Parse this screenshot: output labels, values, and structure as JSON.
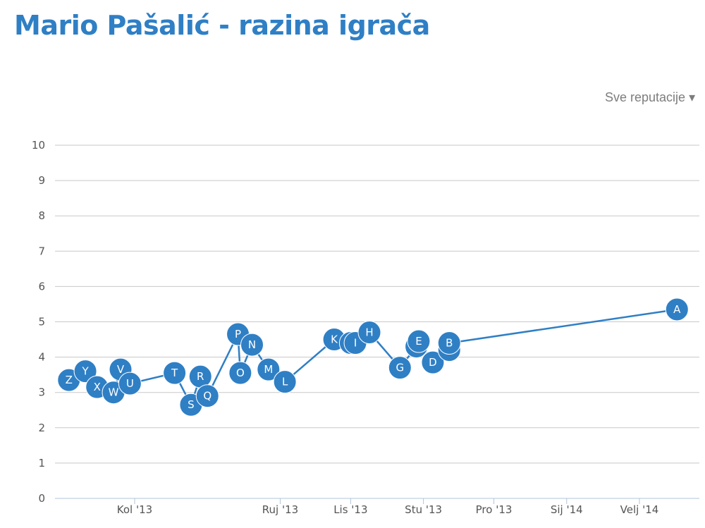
{
  "title": "Mario Pašalić - razina igrača",
  "filter": {
    "label": "Sve reputacije"
  },
  "colors": {
    "series": "#2f7fc5",
    "grid": "#c8c8c8",
    "axis": "#b0c4de"
  },
  "chart_data": {
    "type": "line",
    "title": "",
    "xlabel": "",
    "ylabel": "",
    "ylim": [
      0,
      10
    ],
    "yticks": [
      "0",
      "1",
      "2",
      "3",
      "4",
      "5",
      "6",
      "7",
      "8",
      "9",
      "10"
    ],
    "grid": true,
    "xticks": [
      {
        "label": "Kol '13",
        "date": "2013-07-01"
      },
      {
        "label": "Ruj '13",
        "date": "2013-09-01"
      },
      {
        "label": "Lis '13",
        "date": "2013-10-01"
      },
      {
        "label": "Stu '13",
        "date": "2013-11-01"
      },
      {
        "label": "Pro '13",
        "date": "2013-12-01"
      },
      {
        "label": "Sij '14",
        "date": "2014-01-01"
      },
      {
        "label": "Velj '14",
        "date": "2014-02-01"
      }
    ],
    "series": [
      {
        "points": [
          {
            "label": "Z",
            "date": "2013-06-03",
            "y": 3.35
          },
          {
            "label": "Y",
            "date": "2013-06-10",
            "y": 3.6
          },
          {
            "label": "X",
            "date": "2013-06-15",
            "y": 3.15
          },
          {
            "label": "W",
            "date": "2013-06-22",
            "y": 3.0
          },
          {
            "label": "V",
            "date": "2013-06-25",
            "y": 3.65
          },
          {
            "label": "U",
            "date": "2013-06-29",
            "y": 3.25
          },
          {
            "label": "T",
            "date": "2013-07-18",
            "y": 3.55
          },
          {
            "label": "S",
            "date": "2013-07-25",
            "y": 2.65
          },
          {
            "label": "R",
            "date": "2013-07-29",
            "y": 3.45
          },
          {
            "label": "Q",
            "date": "2013-08-01",
            "y": 2.9
          },
          {
            "label": "P",
            "date": "2013-08-14",
            "y": 4.65
          },
          {
            "label": "O",
            "date": "2013-08-15",
            "y": 3.55
          },
          {
            "label": "N",
            "date": "2013-08-20",
            "y": 4.35
          },
          {
            "label": "M",
            "date": "2013-08-27",
            "y": 3.65
          },
          {
            "label": "L",
            "date": "2013-09-03",
            "y": 3.3
          },
          {
            "label": "K",
            "date": "2013-09-24",
            "y": 4.5
          },
          {
            "label": "J",
            "date": "2013-10-01",
            "y": 4.4
          },
          {
            "label": "I",
            "date": "2013-10-03",
            "y": 4.4
          },
          {
            "label": "H",
            "date": "2013-10-09",
            "y": 4.7
          },
          {
            "label": "G",
            "date": "2013-10-22",
            "y": 3.7
          },
          {
            "label": "F",
            "date": "2013-10-29",
            "y": 4.3
          },
          {
            "label": "E",
            "date": "2013-10-30",
            "y": 4.45
          },
          {
            "label": "D",
            "date": "2013-11-05",
            "y": 3.85
          },
          {
            "label": "C",
            "date": "2013-11-12",
            "y": 4.2
          },
          {
            "label": "B",
            "date": "2013-11-12",
            "y": 4.4
          },
          {
            "label": "A",
            "date": "2014-02-17",
            "y": 5.35
          }
        ]
      }
    ]
  }
}
